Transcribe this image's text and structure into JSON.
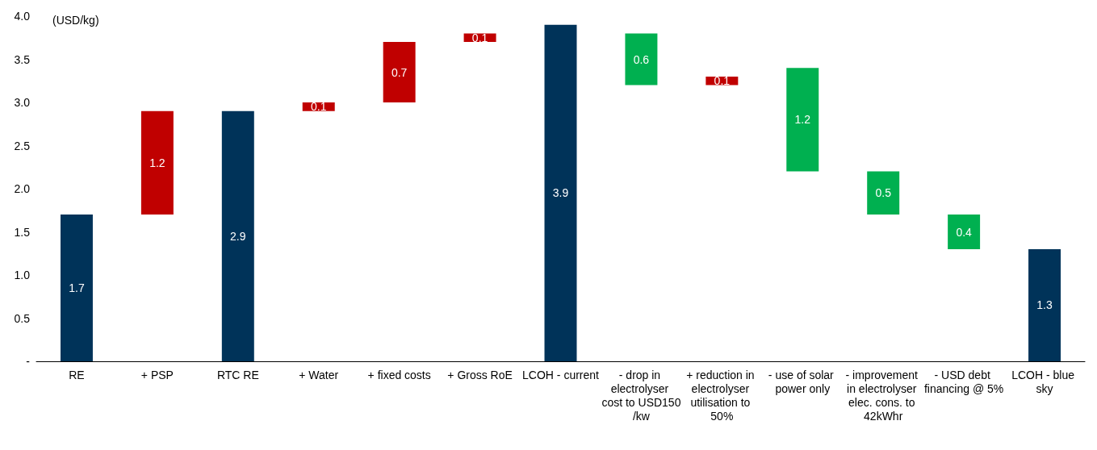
{
  "chart_data": {
    "type": "bar",
    "ylabel": "(USD/kg)",
    "categories": [
      "RE",
      "+ PSP",
      "RTC RE",
      "+ Water",
      "+ fixed costs",
      "+ Gross RoE",
      "LCOH - current",
      "- drop in electrolyser cost to USD150/kw",
      "+ reduction in electrolyser utilisation to 50%",
      "- use of solar power only",
      "- improvement in electrolyser elec. cons. to 42kWhr",
      "- USD debt financing @ 5%",
      "LCOH - blue sky"
    ],
    "values": [
      1.7,
      1.2,
      2.9,
      0.1,
      0.7,
      0.1,
      3.9,
      0.6,
      0.1,
      1.2,
      0.5,
      0.4,
      1.3
    ],
    "base": [
      0,
      1.7,
      0,
      2.9,
      3.0,
      3.7,
      0,
      3.2,
      3.2,
      2.2,
      1.7,
      1.3,
      0
    ],
    "colors": [
      "#003359",
      "#c00000",
      "#003359",
      "#c00000",
      "#c00000",
      "#c00000",
      "#003359",
      "#00b050",
      "#c00000",
      "#00b050",
      "#00b050",
      "#00b050",
      "#003359"
    ],
    "ylim": [
      0,
      4
    ],
    "yticks": [
      {
        "value": 0,
        "label": "-"
      },
      {
        "value": 0.5,
        "label": "0.5"
      },
      {
        "value": 1,
        "label": "1.0"
      },
      {
        "value": 1.5,
        "label": "1.5"
      },
      {
        "value": 2,
        "label": "2.0"
      },
      {
        "value": 2.5,
        "label": "2.5"
      },
      {
        "value": 3,
        "label": "3.0"
      },
      {
        "value": 3.5,
        "label": "3.5"
      },
      {
        "value": 4,
        "label": "4.0"
      }
    ],
    "data_labels": true,
    "grid": false
  }
}
